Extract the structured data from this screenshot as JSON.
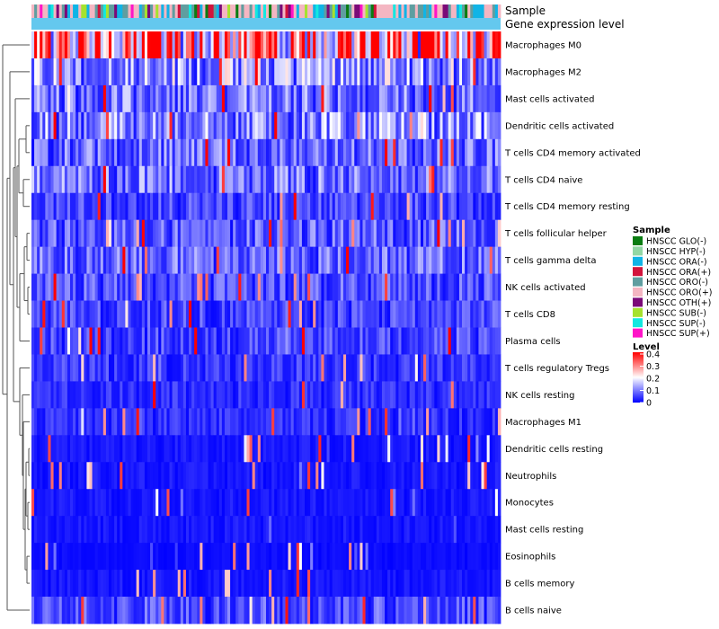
{
  "chart_data": {
    "type": "heatmap",
    "annotation_tracks": [
      "Sample",
      "Gene expression level"
    ],
    "rows": [
      "Macrophages M0",
      "Macrophages M2",
      "Mast cells activated",
      "Dendritic cells activated",
      "T cells CD4 memory activated",
      "T cells CD4 naive",
      "T cells CD4 memory resting",
      "T cells follicular helper",
      "T cells gamma delta",
      "NK cells activated",
      "T cells CD8",
      "Plasma cells",
      "T cells regulatory  Tregs",
      "NK cells resting",
      "Macrophages M1",
      "Dendritic cells resting",
      "Neutrophils",
      "Monocytes",
      "Mast cells resting",
      "Eosinophils",
      "B cells memory",
      "B cells naive"
    ],
    "row_mean_levels": [
      0.34,
      0.14,
      0.1,
      0.12,
      0.09,
      0.1,
      0.06,
      0.08,
      0.09,
      0.07,
      0.06,
      0.06,
      0.05,
      0.04,
      0.04,
      0.02,
      0.02,
      0.02,
      0.02,
      0.01,
      0.02,
      0.07
    ],
    "n_samples": 170,
    "color_scale": {
      "title": "Level",
      "breaks": [
        "0.4",
        "0.3",
        "0.2",
        "0.1",
        "0"
      ],
      "domain": [
        0,
        0.4
      ],
      "colors": [
        "#0000ff",
        "#ffffff",
        "#ff0000"
      ]
    },
    "sample_legend": {
      "title": "Sample",
      "items": [
        {
          "label": "HNSCC GLO(-)",
          "color": "#0a7d12"
        },
        {
          "label": "HNSCC HYP(-)",
          "color": "#92d7a4"
        },
        {
          "label": "HNSCC ORA(-)",
          "color": "#10b4e6"
        },
        {
          "label": "HNSCC ORA(+)",
          "color": "#d2143c"
        },
        {
          "label": "HNSCC ORO(-)",
          "color": "#5f9ea0"
        },
        {
          "label": "HNSCC ORO(+)",
          "color": "#f4b6c2"
        },
        {
          "label": "HNSCC OTH(+)",
          "color": "#7b0a78"
        },
        {
          "label": "HNSCC SUB(-)",
          "color": "#a6e22e"
        },
        {
          "label": "HNSCC SUP(-)",
          "color": "#12e8e0"
        },
        {
          "label": "HNSCC SUP(+)",
          "color": "#ff14c8"
        }
      ]
    },
    "gene_expression_track_color": "#64c8ee"
  }
}
